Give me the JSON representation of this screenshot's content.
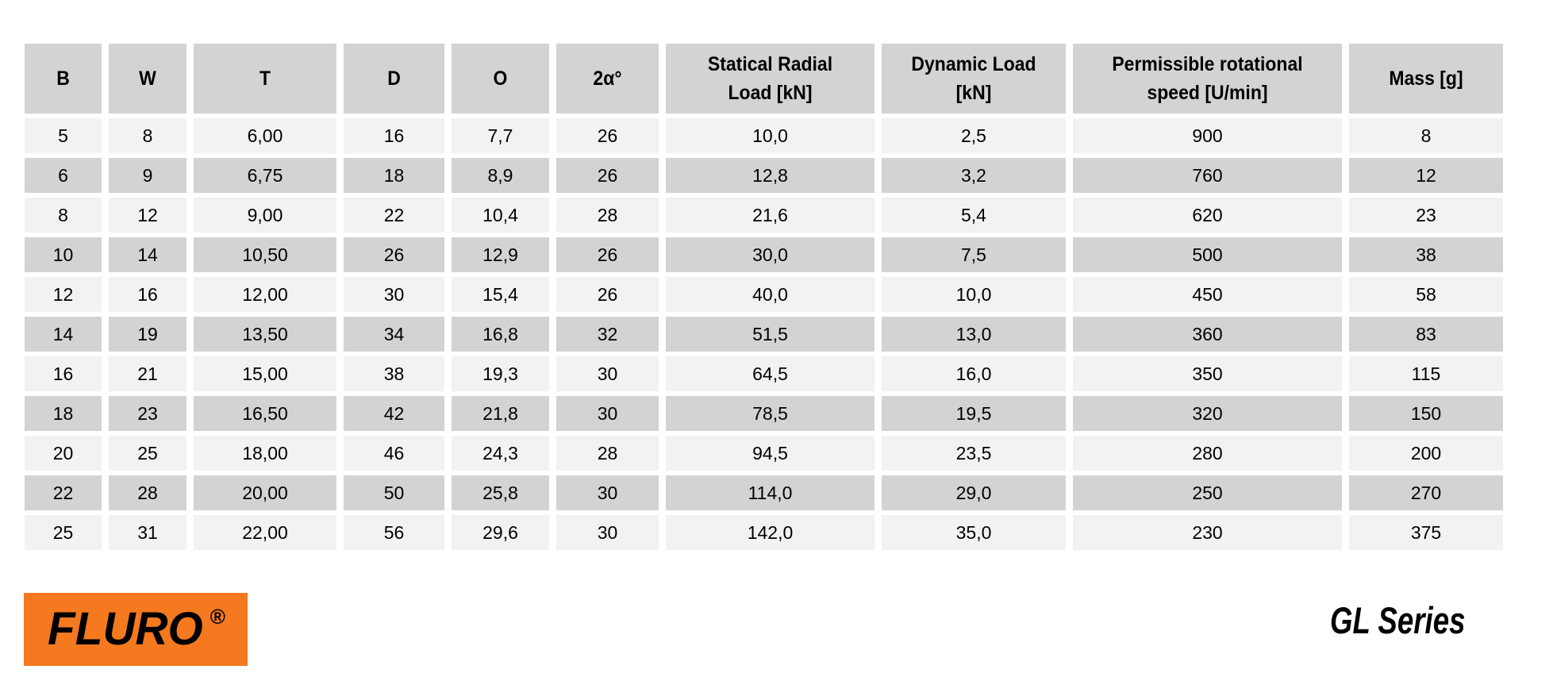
{
  "table": {
    "headers": [
      {
        "key": "b",
        "lines": [
          "B"
        ]
      },
      {
        "key": "w",
        "lines": [
          "W"
        ]
      },
      {
        "key": "t",
        "lines": [
          "T"
        ]
      },
      {
        "key": "d",
        "lines": [
          "D"
        ]
      },
      {
        "key": "o",
        "lines": [
          "O"
        ]
      },
      {
        "key": "2-alpha-deg",
        "lines": [
          "2α°"
        ]
      },
      {
        "key": "statical-radial-load",
        "lines": [
          "Statical Radial",
          "Load [kN]"
        ]
      },
      {
        "key": "dynamic-load",
        "lines": [
          "Dynamic Load",
          "[kN]"
        ]
      },
      {
        "key": "permissible-rotational-speed",
        "lines": [
          "Permissible rotational",
          "speed [U/min]"
        ]
      },
      {
        "key": "mass",
        "lines": [
          "Mass [g]"
        ]
      }
    ],
    "rows": [
      [
        "5",
        "8",
        "6,00",
        "16",
        "7,7",
        "26",
        "10,0",
        "2,5",
        "900",
        "8"
      ],
      [
        "6",
        "9",
        "6,75",
        "18",
        "8,9",
        "26",
        "12,8",
        "3,2",
        "760",
        "12"
      ],
      [
        "8",
        "12",
        "9,00",
        "22",
        "10,4",
        "28",
        "21,6",
        "5,4",
        "620",
        "23"
      ],
      [
        "10",
        "14",
        "10,50",
        "26",
        "12,9",
        "26",
        "30,0",
        "7,5",
        "500",
        "38"
      ],
      [
        "12",
        "16",
        "12,00",
        "30",
        "15,4",
        "26",
        "40,0",
        "10,0",
        "450",
        "58"
      ],
      [
        "14",
        "19",
        "13,50",
        "34",
        "16,8",
        "32",
        "51,5",
        "13,0",
        "360",
        "83"
      ],
      [
        "16",
        "21",
        "15,00",
        "38",
        "19,3",
        "30",
        "64,5",
        "16,0",
        "350",
        "115"
      ],
      [
        "18",
        "23",
        "16,50",
        "42",
        "21,8",
        "30",
        "78,5",
        "19,5",
        "320",
        "150"
      ],
      [
        "20",
        "25",
        "18,00",
        "46",
        "24,3",
        "28",
        "94,5",
        "23,5",
        "280",
        "200"
      ],
      [
        "22",
        "28",
        "20,00",
        "50",
        "25,8",
        "30",
        "114,0",
        "29,0",
        "250",
        "270"
      ],
      [
        "25",
        "31",
        "22,00",
        "56",
        "29,6",
        "30",
        "142,0",
        "35,0",
        "230",
        "375"
      ]
    ],
    "colors": {
      "header_bg": "#d3d3d3",
      "row_odd_bg": "#f2f2f2",
      "row_even_bg": "#d3d3d3",
      "text": "#000000"
    }
  },
  "branding": {
    "logo_text": "FLURO",
    "registered_mark": "®",
    "logo_bg": "#f4791f",
    "series_label": "GL Series"
  }
}
